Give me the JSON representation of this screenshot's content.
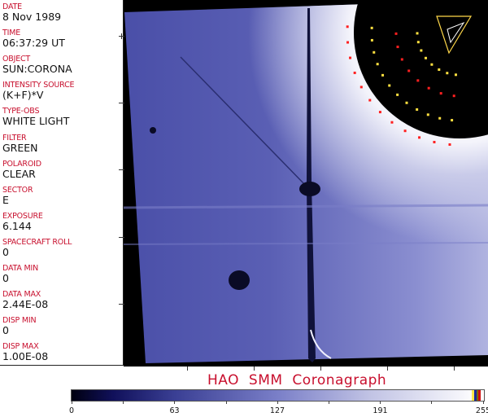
{
  "fields": [
    {
      "label": "DATE",
      "value": "8 Nov 1989"
    },
    {
      "label": "TIME",
      "value": "06:37:29 UT"
    },
    {
      "label": "OBJECT",
      "value": "SUN:CORONA"
    },
    {
      "label": "INTENSITY SOURCE",
      "value": "(K+F)*V"
    },
    {
      "label": "TYPE-OBS",
      "value": "WHITE LIGHT"
    },
    {
      "label": "FILTER",
      "value": "GREEN"
    },
    {
      "label": "POLAROID",
      "value": "CLEAR"
    },
    {
      "label": "SECTOR",
      "value": "E"
    },
    {
      "label": "EXPOSURE",
      "value": "6.144"
    },
    {
      "label": "SPACECRAFT ROLL",
      "value": "0"
    },
    {
      "label": "DATA MIN",
      "value": "0"
    },
    {
      "label": "DATA MAX",
      "value": "2.44E-08"
    },
    {
      "label": "DISP MIN",
      "value": "0"
    },
    {
      "label": "DISP MAX",
      "value": "1.00E-08"
    }
  ],
  "title": "HAO  SMM Coronagraph",
  "colorbar": {
    "ticks": [
      "0",
      "63",
      "127",
      "191",
      "255"
    ],
    "colors": {
      "label": "#c8102e",
      "low": "#000010",
      "high": "#ffffff"
    }
  }
}
